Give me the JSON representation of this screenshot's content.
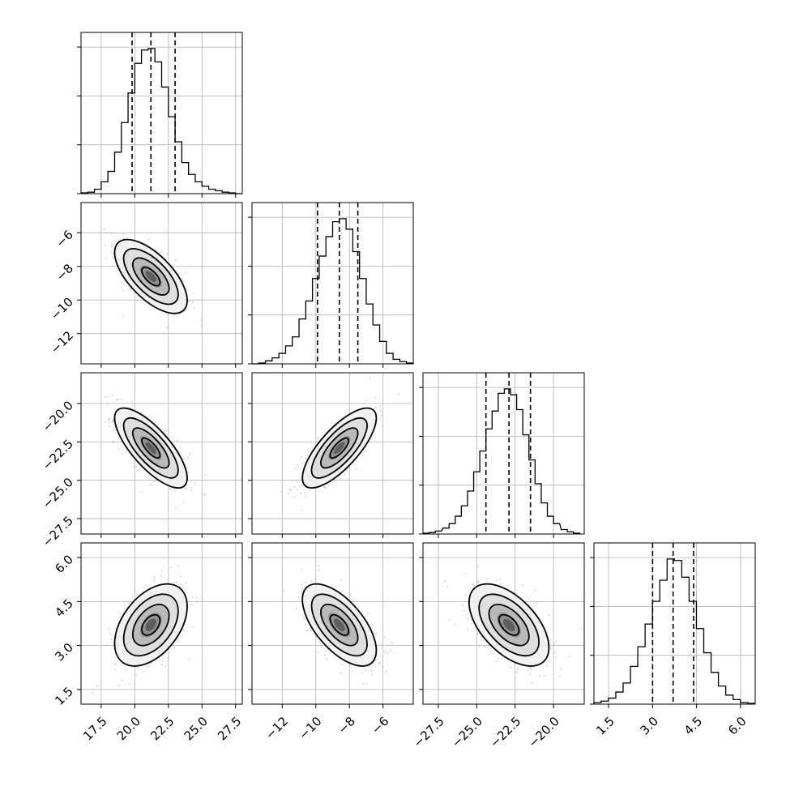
{
  "chart_data": {
    "type": "corner",
    "grid": true,
    "n_params": 4,
    "parameters": [
      {
        "range": [
          16.0,
          28.0
        ],
        "ticks": [
          "17.5",
          "20.0",
          "22.5",
          "25.0",
          "27.5"
        ],
        "mean": 21.2,
        "sd": 1.35,
        "quantiles": [
          19.8,
          21.2,
          23.0
        ],
        "hist_centers": [
          16.25,
          16.75,
          17.25,
          17.75,
          18.25,
          18.75,
          19.25,
          19.75,
          20.25,
          20.75,
          21.25,
          21.75,
          22.25,
          22.75,
          23.25,
          23.75,
          24.25,
          24.75,
          25.25,
          25.75,
          26.25,
          26.75,
          27.25,
          27.75
        ],
        "hist_heights": [
          0.005,
          0.01,
          0.03,
          0.08,
          0.15,
          0.28,
          0.48,
          0.68,
          0.88,
          0.97,
          0.98,
          0.89,
          0.72,
          0.52,
          0.35,
          0.21,
          0.13,
          0.08,
          0.05,
          0.03,
          0.02,
          0.01,
          0.005,
          0.0
        ]
      },
      {
        "range": [
          -13.8,
          -4.2
        ],
        "ticks": [
          "-12",
          "-10",
          "-8",
          "-6"
        ],
        "mean": -8.6,
        "sd": 1.1,
        "quantiles": [
          -9.9,
          -8.6,
          -7.5
        ],
        "hist_centers": [
          -13.6,
          -13.2,
          -12.8,
          -12.4,
          -12.0,
          -11.6,
          -11.2,
          -10.8,
          -10.4,
          -10.0,
          -9.6,
          -9.2,
          -8.8,
          -8.4,
          -8.0,
          -7.6,
          -7.2,
          -6.8,
          -6.4,
          -6.0,
          -5.6,
          -5.2,
          -4.8,
          -4.4
        ],
        "hist_heights": [
          0.0,
          0.005,
          0.02,
          0.04,
          0.07,
          0.12,
          0.18,
          0.3,
          0.42,
          0.57,
          0.72,
          0.85,
          0.95,
          0.97,
          0.9,
          0.75,
          0.57,
          0.4,
          0.26,
          0.15,
          0.07,
          0.03,
          0.015,
          0.005
        ]
      },
      {
        "range": [
          -28.5,
          -18.0
        ],
        "ticks": [
          "-27.5",
          "-25.0",
          "-22.5",
          "-20.0"
        ],
        "mean": -22.9,
        "sd": 1.3,
        "quantiles": [
          -24.4,
          -22.9,
          -21.5
        ],
        "hist_centers": [
          -28.3,
          -27.9,
          -27.5,
          -27.0,
          -26.6,
          -26.2,
          -25.8,
          -25.4,
          -25.0,
          -24.6,
          -24.2,
          -23.8,
          -23.4,
          -23.0,
          -22.6,
          -22.2,
          -21.8,
          -21.4,
          -21.0,
          -20.6,
          -20.2,
          -19.8,
          -19.3,
          -18.9,
          -18.5
        ],
        "hist_heights": [
          0.005,
          0.01,
          0.02,
          0.04,
          0.07,
          0.12,
          0.19,
          0.29,
          0.42,
          0.56,
          0.71,
          0.83,
          0.95,
          0.98,
          0.94,
          0.84,
          0.67,
          0.5,
          0.34,
          0.21,
          0.12,
          0.07,
          0.03,
          0.015,
          0.005
        ]
      },
      {
        "range": [
          1.0,
          6.5
        ],
        "ticks": [
          "1.5",
          "3.0",
          "4.5",
          "6.0"
        ],
        "mean": 3.7,
        "sd": 0.7,
        "quantiles": [
          3.0,
          3.7,
          4.4
        ],
        "hist_centers": [
          1.12,
          1.37,
          1.62,
          1.87,
          2.12,
          2.37,
          2.62,
          2.87,
          3.12,
          3.37,
          3.62,
          3.87,
          4.12,
          4.37,
          4.62,
          4.87,
          5.12,
          5.37,
          5.62,
          5.87,
          6.12,
          6.37
        ],
        "hist_heights": [
          0.01,
          0.02,
          0.04,
          0.08,
          0.14,
          0.25,
          0.38,
          0.53,
          0.68,
          0.82,
          0.96,
          0.95,
          0.84,
          0.68,
          0.5,
          0.34,
          0.21,
          0.12,
          0.06,
          0.03,
          0.01,
          0.005
        ]
      }
    ],
    "correlations": [
      {
        "x": 0,
        "y": 1,
        "rho": -0.65
      },
      {
        "x": 0,
        "y": 2,
        "rho": -0.75
      },
      {
        "x": 1,
        "y": 2,
        "rho": 0.75
      },
      {
        "x": 0,
        "y": 3,
        "rho": 0.45
      },
      {
        "x": 1,
        "y": 3,
        "rho": -0.62
      },
      {
        "x": 2,
        "y": 3,
        "rho": -0.55
      }
    ],
    "contour_levels_sigma": [
      0.5,
      1.0,
      1.5,
      2.0
    ],
    "colors": {
      "line": "#000000",
      "grid": "#b0b0b0",
      "points": "#999999"
    }
  }
}
